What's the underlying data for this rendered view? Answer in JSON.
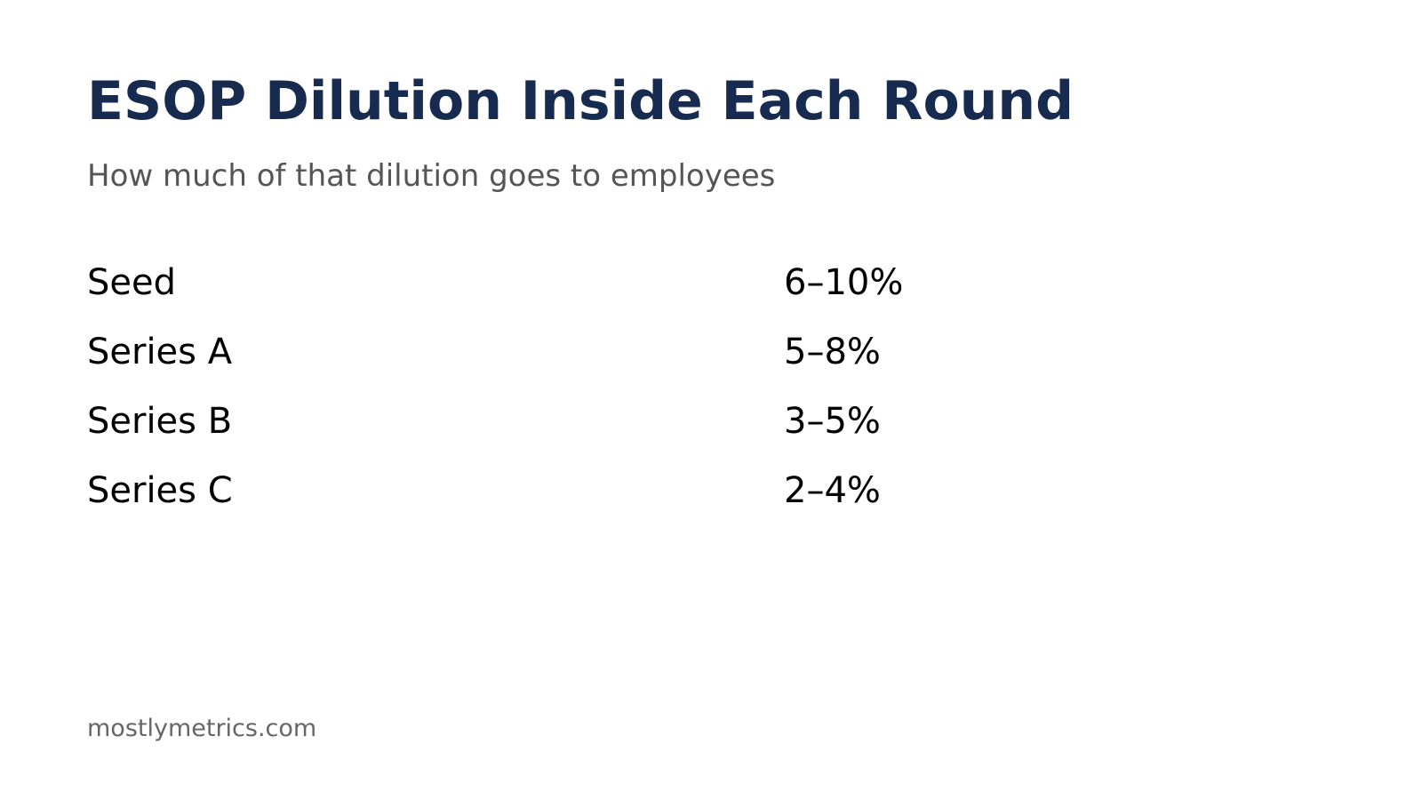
{
  "header": {
    "title": "ESOP Dilution Inside Each Round",
    "subtitle": "How much of that dilution goes to employees"
  },
  "table": {
    "rows": [
      [
        "Seed",
        "6–10%"
      ],
      [
        "Series A",
        "5–8%"
      ],
      [
        "Series B",
        "3–5%"
      ],
      [
        "Series C",
        "2–4%"
      ]
    ]
  },
  "footer": {
    "source": "mostlymetrics.com"
  }
}
